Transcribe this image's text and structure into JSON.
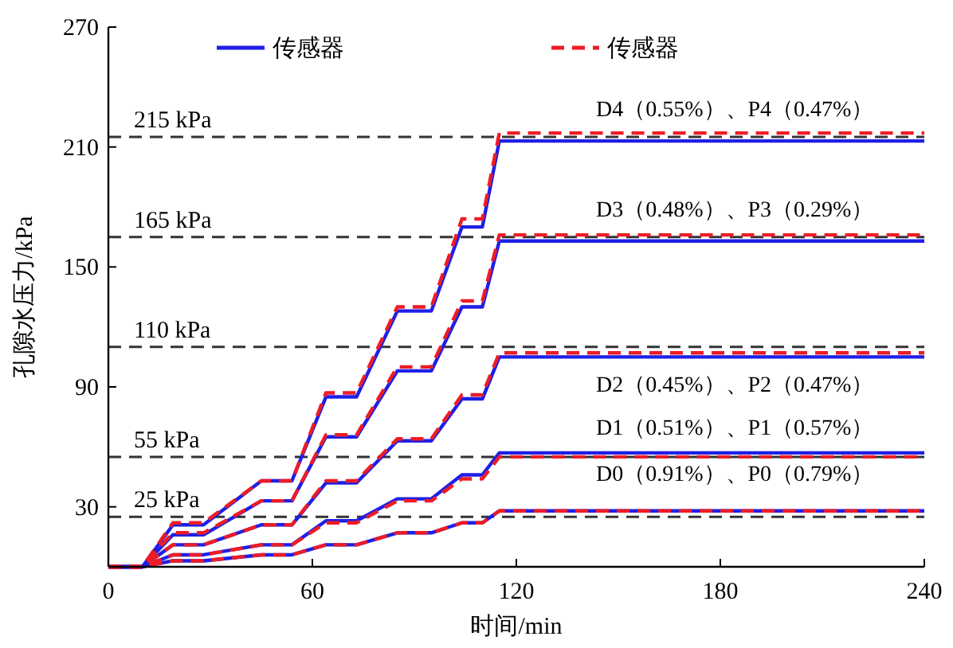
{
  "chart_data": {
    "type": "line",
    "xlabel": "时间/min",
    "ylabel": "孔隙水压力/kPa",
    "xlim": [
      0,
      240
    ],
    "ylim": [
      0,
      270
    ],
    "xticks": [
      0,
      60,
      120,
      180,
      240
    ],
    "yticks": [
      30,
      90,
      150,
      210,
      270
    ],
    "legend": "top",
    "x": [
      0,
      10,
      19,
      28,
      45,
      54,
      64,
      73,
      85,
      95,
      104,
      110,
      115,
      240
    ],
    "series": [
      {
        "name": "传感器",
        "color": "#1f1fe6",
        "line_style": "solid",
        "values": [
          0,
          0,
          21,
          21,
          43,
          43,
          85,
          85,
          128,
          128,
          170,
          170,
          213,
          213
        ]
      },
      {
        "color": "#1f1fe6",
        "line_style": "solid",
        "values": [
          0,
          0,
          16,
          16,
          33,
          33,
          65,
          65,
          98,
          98,
          130,
          130,
          163,
          163
        ]
      },
      {
        "color": "#1f1fe6",
        "line_style": "solid",
        "values": [
          0,
          0,
          11,
          11,
          21,
          21,
          42,
          42,
          63,
          63,
          84,
          84,
          105,
          105
        ]
      },
      {
        "color": "#1f1fe6",
        "line_style": "solid",
        "values": [
          0,
          0,
          6,
          6,
          11,
          11,
          23,
          23,
          34,
          34,
          46,
          46,
          57,
          57
        ]
      },
      {
        "color": "#1f1fe6",
        "line_style": "solid",
        "values": [
          0,
          0,
          3,
          3,
          6,
          6,
          11,
          11,
          17,
          17,
          22,
          22,
          28,
          28
        ]
      },
      {
        "name": "传感器",
        "color": "#ee1c25",
        "line_style": "dashed",
        "values": [
          0,
          0,
          22,
          22,
          43,
          43,
          87,
          87,
          130,
          130,
          174,
          174,
          217,
          217
        ]
      },
      {
        "color": "#ee1c25",
        "line_style": "dashed",
        "values": [
          0,
          0,
          17,
          17,
          33,
          33,
          66,
          66,
          100,
          100,
          133,
          133,
          166,
          166
        ]
      },
      {
        "color": "#ee1c25",
        "line_style": "dashed",
        "values": [
          0,
          0,
          11,
          11,
          21,
          21,
          43,
          43,
          64,
          64,
          86,
          86,
          107,
          107
        ]
      },
      {
        "color": "#ee1c25",
        "line_style": "dashed",
        "values": [
          0,
          0,
          6,
          6,
          11,
          11,
          22,
          22,
          33,
          33,
          44,
          44,
          55,
          55
        ]
      },
      {
        "color": "#ee1c25",
        "line_style": "dashed",
        "values": [
          0,
          0,
          3,
          3,
          6,
          6,
          11,
          11,
          17,
          17,
          22,
          22,
          28,
          28
        ]
      }
    ],
    "ref_lines": [
      {
        "axis": "y",
        "value": 215,
        "label": "215 kPa",
        "color": "#333333",
        "line_style": "dashed"
      },
      {
        "axis": "y",
        "value": 165,
        "label": "165 kPa",
        "color": "#333333",
        "line_style": "dashed"
      },
      {
        "axis": "y",
        "value": 110,
        "label": "110 kPa",
        "color": "#333333",
        "line_style": "dashed"
      },
      {
        "axis": "y",
        "value": 55,
        "label": "55 kPa",
        "color": "#333333",
        "line_style": "dashed"
      },
      {
        "axis": "y",
        "value": 25,
        "label": "25 kPa",
        "color": "#333333",
        "line_style": "dashed"
      }
    ],
    "annotations": [
      "D4（0.55%）、P4（0.47%）",
      "D3（0.48%）、P3（0.29%）",
      "D2（0.45%）、P2（0.47%）",
      "D1（0.51%）、P1（0.57%）",
      "D0（0.91%）、P0（0.79%）"
    ]
  }
}
